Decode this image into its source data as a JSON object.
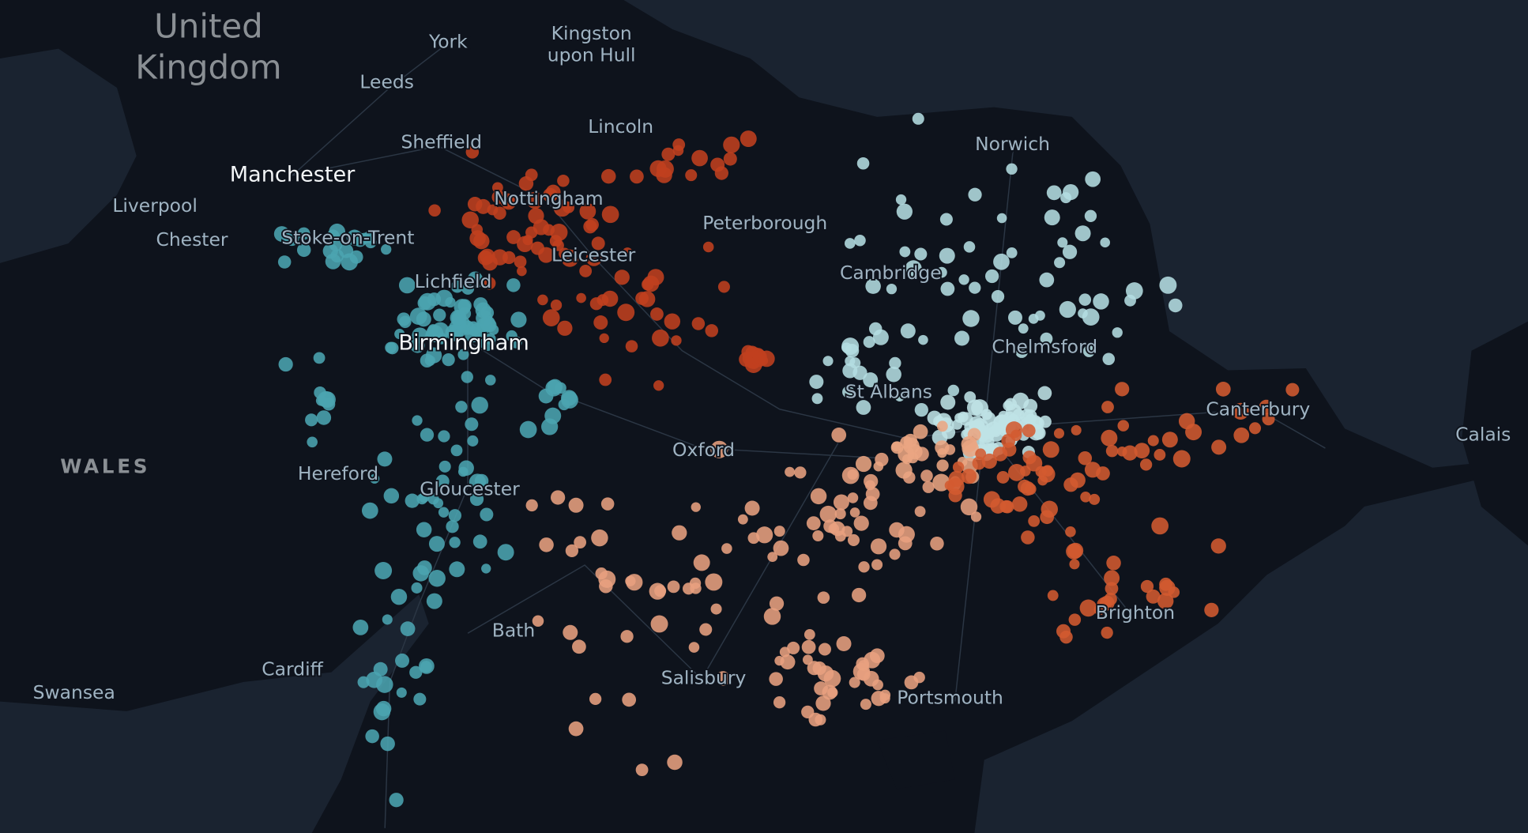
{
  "map": {
    "labels": [
      "United Kingdom",
      "York",
      "Kingston upon Hull",
      "Leeds",
      "Lincoln",
      "Sheffield",
      "Manchester",
      "Liverpool",
      "Chester",
      "Stoke-on-Trent",
      "Nottingham",
      "Leicester",
      "Peterborough",
      "Norwich",
      "Cambridge",
      "Lichfield",
      "Birmingham",
      "Chelmsford",
      "St Albans",
      "Canterbury",
      "Calais",
      "WALES",
      "Oxford",
      "Hereford",
      "Gloucester",
      "Brighton",
      "Bath",
      "Cardiff",
      "Salisbury",
      "Swansea",
      "Portsmouth"
    ]
  }
}
